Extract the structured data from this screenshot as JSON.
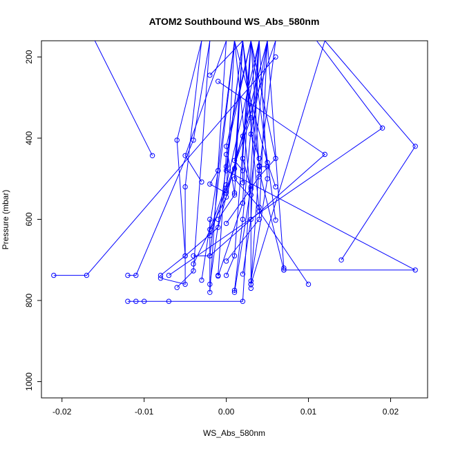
{
  "chart_data": {
    "type": "line",
    "title": "ATOM2 Southbound WS_Abs_580nm",
    "xlabel": "WS_Abs_580nm",
    "ylabel": "Pressure (mbar)",
    "xlim": [
      -0.0225,
      0.0245
    ],
    "ylim": [
      1040,
      160
    ],
    "y_reversed": true,
    "x_ticks": [
      -0.02,
      -0.01,
      0.0,
      0.01,
      0.02
    ],
    "x_tick_labels": [
      "-0.02",
      "-0.01",
      "0.00",
      "0.01",
      "0.02"
    ],
    "y_ticks": [
      200,
      400,
      600,
      800,
      1000
    ],
    "y_tick_labels": [
      "200",
      "400",
      "600",
      "800",
      "1000"
    ],
    "series_color": "#0000ff",
    "marker": "open-circle",
    "grid": false,
    "legend": "none",
    "series": [
      {
        "points": [
          [
            -0.021,
            738
          ],
          [
            -0.017,
            738
          ],
          [
            0.006,
            200
          ]
        ]
      },
      {
        "points": [
          [
            -0.012,
            738
          ],
          [
            -0.011,
            738
          ],
          [
            -0.004,
            405
          ],
          [
            -0.002,
            160
          ]
        ]
      },
      {
        "points": [
          [
            -0.012,
            802
          ],
          [
            -0.011,
            802
          ],
          [
            -0.01,
            802
          ],
          [
            -0.007,
            802
          ],
          [
            0.002,
            802
          ],
          [
            0.004,
            160
          ]
        ]
      },
      {
        "points": [
          [
            -0.008,
            738
          ],
          [
            -0.005,
            690
          ],
          [
            -0.006,
            405
          ],
          [
            -0.003,
            160
          ]
        ]
      },
      {
        "points": [
          [
            -0.008,
            745
          ],
          [
            -0.005,
            760
          ],
          [
            -0.005,
            520
          ],
          [
            -0.003,
            160
          ]
        ]
      },
      {
        "points": [
          [
            -0.006,
            768
          ],
          [
            -0.004,
            727
          ],
          [
            -0.002,
            160
          ]
        ]
      },
      {
        "points": [
          [
            -0.009,
            443
          ],
          [
            -0.016,
            160
          ]
        ]
      },
      {
        "points": [
          [
            -0.003,
            508
          ],
          [
            -0.005,
            443
          ],
          [
            0.0,
            160
          ]
        ]
      },
      {
        "points": [
          [
            -0.002,
            600
          ],
          [
            -0.002,
            780
          ],
          [
            0.0,
            160
          ]
        ]
      },
      {
        "points": [
          [
            -0.004,
            690
          ],
          [
            -0.002,
            690
          ],
          [
            0.001,
            160
          ]
        ]
      },
      {
        "points": [
          [
            -0.002,
            760
          ],
          [
            0.0,
            470
          ],
          [
            0.002,
            160
          ]
        ]
      },
      {
        "points": [
          [
            -0.001,
            738
          ],
          [
            0.0,
            440
          ],
          [
            0.003,
            160
          ]
        ]
      },
      {
        "points": [
          [
            -0.003,
            750
          ],
          [
            -0.001,
            480
          ],
          [
            0.001,
            160
          ]
        ]
      },
      {
        "points": [
          [
            0.0,
            738
          ],
          [
            0.001,
            690
          ],
          [
            0.003,
            160
          ]
        ]
      },
      {
        "points": [
          [
            0.001,
            775
          ],
          [
            0.002,
            600
          ],
          [
            0.004,
            160
          ]
        ]
      },
      {
        "points": [
          [
            0.001,
            780
          ],
          [
            0.003,
            520
          ],
          [
            0.005,
            160
          ]
        ]
      },
      {
        "points": [
          [
            0.003,
            770
          ],
          [
            0.003,
            540
          ],
          [
            0.001,
            160
          ]
        ]
      },
      {
        "points": [
          [
            0.003,
            760
          ],
          [
            0.004,
            468
          ],
          [
            0.002,
            160
          ]
        ]
      },
      {
        "points": [
          [
            0.003,
            752
          ],
          [
            0.005,
            500
          ],
          [
            0.004,
            160
          ]
        ]
      },
      {
        "points": [
          [
            -0.001,
            480
          ],
          [
            -0.002,
            513
          ],
          [
            0.0,
            535
          ],
          [
            0.001,
            160
          ]
        ]
      },
      {
        "points": [
          [
            0.0,
            530
          ],
          [
            0.001,
            475
          ],
          [
            0.002,
            160
          ]
        ]
      },
      {
        "points": [
          [
            0.001,
            535
          ],
          [
            0.0,
            420
          ],
          [
            0.003,
            160
          ]
        ]
      },
      {
        "points": [
          [
            0.002,
            510
          ],
          [
            0.002,
            395
          ],
          [
            0.004,
            160
          ]
        ]
      },
      {
        "points": [
          [
            0.004,
            450
          ],
          [
            0.003,
            390
          ],
          [
            0.005,
            160
          ]
        ]
      },
      {
        "points": [
          [
            0.002,
            480
          ],
          [
            0.001,
            455
          ],
          [
            0.006,
            160
          ]
        ]
      },
      {
        "points": [
          [
            0.004,
            570
          ],
          [
            0.001,
            500
          ],
          [
            0.002,
            160
          ]
        ]
      },
      {
        "points": [
          [
            0.003,
            525
          ],
          [
            0.002,
            450
          ],
          [
            0.003,
            160
          ]
        ]
      },
      {
        "points": [
          [
            0.0,
            703
          ],
          [
            0.004,
            600
          ],
          [
            0.005,
            160
          ]
        ]
      },
      {
        "points": [
          [
            -0.002,
            625
          ],
          [
            0.0,
            515
          ],
          [
            0.004,
            160
          ]
        ]
      },
      {
        "points": [
          [
            -0.001,
            600
          ],
          [
            0.001,
            540
          ],
          [
            0.002,
            160
          ]
        ]
      },
      {
        "points": [
          [
            0.005,
            470
          ],
          [
            0.004,
            470
          ],
          [
            0.003,
            160
          ]
        ]
      },
      {
        "points": [
          [
            0.006,
            520
          ],
          [
            0.005,
            460
          ],
          [
            0.001,
            160
          ]
        ]
      },
      {
        "points": [
          [
            0.006,
            602
          ],
          [
            0.003,
            160
          ]
        ]
      },
      {
        "points": [
          [
            0.007,
            720
          ],
          [
            0.005,
            160
          ]
        ]
      },
      {
        "points": [
          [
            0.007,
            725
          ],
          [
            0.004,
            480
          ],
          [
            0.006,
            160
          ]
        ]
      },
      {
        "points": [
          [
            0.007,
            725
          ],
          [
            0.023,
            725
          ],
          [
            0.0,
            480
          ],
          [
            0.002,
            160
          ]
        ]
      },
      {
        "points": [
          [
            0.01,
            760
          ],
          [
            0.004,
            580
          ],
          [
            0.002,
            160
          ]
        ]
      },
      {
        "points": [
          [
            0.014,
            700
          ],
          [
            0.023,
            420
          ],
          [
            0.012,
            160
          ]
        ]
      },
      {
        "points": [
          [
            -0.007,
            738
          ],
          [
            0.019,
            375
          ],
          [
            0.011,
            160
          ]
        ]
      },
      {
        "points": [
          [
            -0.002,
            690
          ],
          [
            0.012,
            440
          ],
          [
            -0.001,
            260
          ]
        ]
      },
      {
        "points": [
          [
            -0.002,
            245
          ],
          [
            0.002,
            160
          ]
        ]
      },
      {
        "points": [
          [
            0.003,
            760
          ],
          [
            0.012,
            160
          ]
        ]
      },
      {
        "points": [
          [
            -0.002,
            640
          ],
          [
            0.003,
            350
          ],
          [
            0.002,
            160
          ]
        ]
      },
      {
        "points": [
          [
            0.0,
            610
          ],
          [
            0.004,
            495
          ],
          [
            0.006,
            450
          ],
          [
            0.003,
            160
          ]
        ]
      },
      {
        "points": [
          [
            -0.004,
            710
          ],
          [
            0.0,
            545
          ],
          [
            0.005,
            160
          ]
        ]
      },
      {
        "points": [
          [
            -0.001,
            740
          ],
          [
            0.002,
            560
          ],
          [
            0.003,
            160
          ]
        ]
      },
      {
        "points": [
          [
            0.002,
            735
          ],
          [
            0.003,
            600
          ],
          [
            0.004,
            160
          ]
        ]
      },
      {
        "points": [
          [
            -0.005,
            690
          ],
          [
            -0.001,
            620
          ],
          [
            0.005,
            160
          ]
        ]
      }
    ]
  }
}
